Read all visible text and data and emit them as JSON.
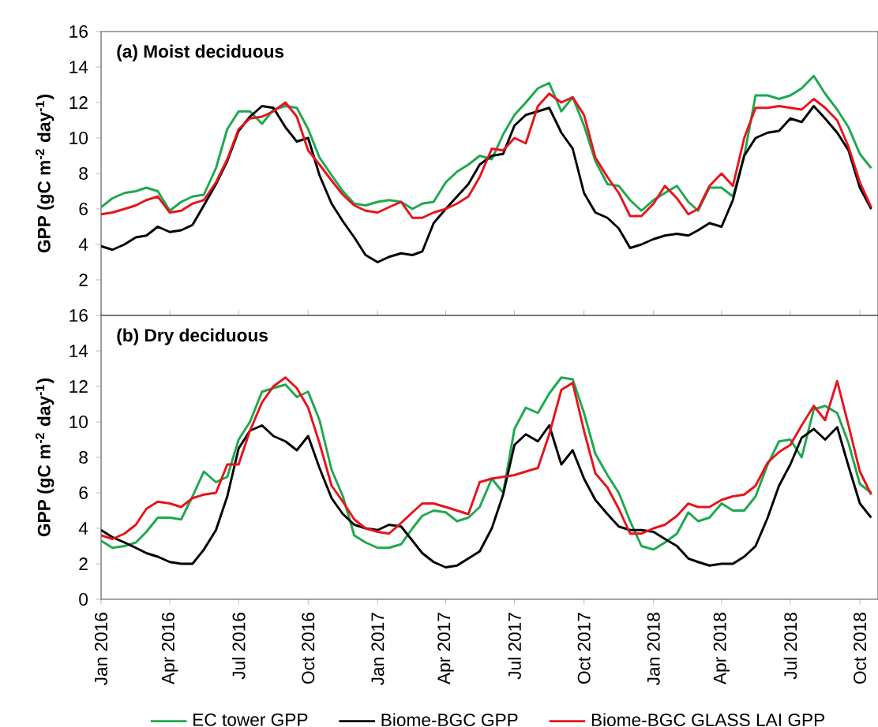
{
  "chart_data": [
    {
      "type": "line",
      "title": "(a) Moist deciduous",
      "ylabel": "GPP (gC m$^{-2}$ day$^{-1}$)",
      "tick_labels": "y",
      "x": [
        "2016-01-01",
        "2016-01-16",
        "2016-02-01",
        "2016-02-16",
        "2016-03-01",
        "2016-03-16",
        "2016-04-01",
        "2016-04-16",
        "2016-05-01",
        "2016-05-16",
        "2016-06-01",
        "2016-06-16",
        "2016-07-01",
        "2016-07-16",
        "2016-08-01",
        "2016-08-16",
        "2016-09-01",
        "2016-09-16",
        "2016-10-01",
        "2016-10-16",
        "2016-11-01",
        "2016-11-16",
        "2016-12-01",
        "2016-12-16",
        "2017-01-01",
        "2017-01-16",
        "2017-02-01",
        "2017-02-16",
        "2017-03-01",
        "2017-03-16",
        "2017-04-01",
        "2017-04-16",
        "2017-05-01",
        "2017-05-16",
        "2017-06-01",
        "2017-06-16",
        "2017-07-01",
        "2017-07-16",
        "2017-08-01",
        "2017-08-16",
        "2017-09-01",
        "2017-09-16",
        "2017-10-01",
        "2017-10-16",
        "2017-11-01",
        "2017-11-16",
        "2017-12-01",
        "2017-12-16",
        "2018-01-01",
        "2018-01-16",
        "2018-02-01",
        "2018-02-16",
        "2018-03-01",
        "2018-03-16",
        "2018-04-01",
        "2018-04-16",
        "2018-05-01",
        "2018-05-16",
        "2018-06-01",
        "2018-06-16",
        "2018-07-01",
        "2018-07-16",
        "2018-08-01",
        "2018-08-16",
        "2018-09-01",
        "2018-09-16",
        "2018-10-01",
        "2018-10-16"
      ],
      "xlim": [
        "2016-01-01",
        "2018-10-25"
      ],
      "ylim": [
        0,
        16
      ],
      "yticks": [
        2,
        4,
        6,
        8,
        10,
        12,
        14,
        16
      ],
      "series": [
        {
          "color": "#1fa84f",
          "values": [
            6.1,
            6.6,
            6.9,
            7.0,
            7.2,
            7.0,
            5.9,
            6.4,
            6.7,
            6.8,
            8.3,
            10.5,
            11.5,
            11.5,
            10.8,
            11.6,
            11.8,
            11.7,
            10.5,
            8.9,
            7.9,
            7.0,
            6.3,
            6.2,
            6.4,
            6.5,
            6.4,
            6.0,
            6.3,
            6.4,
            7.5,
            8.1,
            8.5,
            9.0,
            8.8,
            10.2,
            11.3,
            12.0,
            12.8,
            13.1,
            11.5,
            12.3,
            10.7,
            8.7,
            7.4,
            7.3,
            6.5,
            5.9,
            6.5,
            6.9,
            7.3,
            6.4,
            5.9,
            7.2,
            7.2,
            6.7,
            9.0,
            12.4,
            12.4,
            12.2,
            12.4,
            12.8,
            13.5,
            12.5,
            11.6,
            10.6,
            9.1,
            8.3
          ]
        },
        {
          "color": "#000000",
          "values": [
            3.9,
            3.7,
            4.0,
            4.4,
            4.5,
            5.0,
            4.7,
            4.8,
            5.1,
            6.2,
            7.4,
            8.7,
            10.4,
            11.2,
            11.8,
            11.7,
            10.6,
            9.8,
            10.0,
            7.9,
            6.3,
            5.3,
            4.4,
            3.4,
            3.0,
            3.3,
            3.5,
            3.4,
            3.6,
            5.2,
            6.0,
            6.7,
            7.4,
            8.5,
            9.0,
            9.1,
            10.7,
            11.3,
            11.5,
            11.7,
            10.3,
            9.4,
            6.9,
            5.8,
            5.5,
            4.9,
            3.8,
            4.0,
            4.3,
            4.5,
            4.6,
            4.5,
            4.8,
            5.2,
            5.0,
            6.5,
            9.0,
            10.0,
            10.3,
            10.4,
            11.1,
            10.9,
            11.8,
            11.1,
            10.3,
            9.3,
            7.2,
            6.0
          ]
        },
        {
          "color": "#e8141b",
          "values": [
            5.7,
            5.8,
            6.0,
            6.2,
            6.5,
            6.7,
            5.8,
            5.9,
            6.3,
            6.5,
            7.5,
            8.8,
            10.5,
            11.1,
            11.2,
            11.5,
            12.0,
            11.2,
            9.3,
            8.5,
            7.6,
            6.8,
            6.2,
            5.9,
            5.8,
            6.1,
            6.4,
            5.5,
            5.5,
            5.8,
            6.0,
            6.3,
            6.7,
            7.8,
            9.4,
            9.3,
            10.0,
            9.7,
            11.8,
            12.5,
            12.0,
            12.3,
            11.3,
            8.9,
            7.8,
            6.9,
            5.6,
            5.6,
            6.3,
            7.3,
            6.6,
            5.7,
            6.0,
            7.3,
            8.0,
            7.3,
            10.0,
            11.7,
            11.7,
            11.8,
            11.7,
            11.6,
            12.2,
            11.7,
            11.0,
            9.5,
            7.5,
            6.1
          ]
        }
      ]
    },
    {
      "type": "line",
      "title": "(b) Dry deciduous",
      "ylabel": "GPP (gC m$^{-2}$ day$^{-1}$)",
      "legend": "bottom",
      "x": [
        "2016-01-01",
        "2016-01-16",
        "2016-02-01",
        "2016-02-16",
        "2016-03-01",
        "2016-03-16",
        "2016-04-01",
        "2016-04-16",
        "2016-05-01",
        "2016-05-16",
        "2016-06-01",
        "2016-06-16",
        "2016-07-01",
        "2016-07-16",
        "2016-08-01",
        "2016-08-16",
        "2016-09-01",
        "2016-09-16",
        "2016-10-01",
        "2016-10-16",
        "2016-11-01",
        "2016-11-16",
        "2016-12-01",
        "2016-12-16",
        "2017-01-01",
        "2017-01-16",
        "2017-02-01",
        "2017-02-16",
        "2017-03-01",
        "2017-03-16",
        "2017-04-01",
        "2017-04-16",
        "2017-05-01",
        "2017-05-16",
        "2017-06-01",
        "2017-06-16",
        "2017-07-01",
        "2017-07-16",
        "2017-08-01",
        "2017-08-16",
        "2017-09-01",
        "2017-09-16",
        "2017-10-01",
        "2017-10-16",
        "2017-11-01",
        "2017-11-16",
        "2017-12-01",
        "2017-12-16",
        "2018-01-01",
        "2018-01-16",
        "2018-02-01",
        "2018-02-16",
        "2018-03-01",
        "2018-03-16",
        "2018-04-01",
        "2018-04-16",
        "2018-05-01",
        "2018-05-16",
        "2018-06-01",
        "2018-06-16",
        "2018-07-01",
        "2018-07-16",
        "2018-08-01",
        "2018-08-16",
        "2018-09-01",
        "2018-09-16",
        "2018-10-01",
        "2018-10-16"
      ],
      "xlim": [
        "2016-01-01",
        "2018-10-25"
      ],
      "xticks": [
        {
          "value": "2016-01-01",
          "label": "Jan 2016"
        },
        {
          "value": "2016-04-01",
          "label": "Apr 2016"
        },
        {
          "value": "2016-07-01",
          "label": "Jul 2016"
        },
        {
          "value": "2016-10-01",
          "label": "Oct 2016"
        },
        {
          "value": "2017-01-01",
          "label": "Jan 2017"
        },
        {
          "value": "2017-04-01",
          "label": "Apr 2017"
        },
        {
          "value": "2017-07-01",
          "label": "Jul 2017"
        },
        {
          "value": "2017-10-01",
          "label": "Oct 2017"
        },
        {
          "value": "2018-01-01",
          "label": "Jan 2018"
        },
        {
          "value": "2018-04-01",
          "label": "Apr 2018"
        },
        {
          "value": "2018-07-01",
          "label": "Jul 2018"
        },
        {
          "value": "2018-10-01",
          "label": "Oct 2018"
        }
      ],
      "ylim": [
        0,
        16
      ],
      "yticks": [
        0,
        2,
        4,
        6,
        8,
        10,
        12,
        14,
        16
      ],
      "series": [
        {
          "name": "EC tower GPP",
          "color": "#1fa84f",
          "values": [
            3.3,
            2.9,
            3.0,
            3.2,
            3.8,
            4.6,
            4.6,
            4.5,
            5.8,
            7.2,
            6.6,
            6.9,
            9.0,
            10.0,
            11.7,
            11.9,
            12.1,
            11.4,
            11.7,
            10.1,
            7.3,
            5.8,
            3.6,
            3.2,
            2.9,
            2.9,
            3.1,
            4.0,
            4.7,
            5.0,
            4.9,
            4.4,
            4.6,
            5.2,
            6.8,
            6.0,
            9.6,
            10.8,
            10.5,
            11.6,
            12.5,
            12.4,
            10.5,
            8.2,
            7.0,
            6.0,
            4.4,
            3.0,
            2.8,
            3.2,
            3.7,
            4.9,
            4.4,
            4.6,
            5.4,
            5.0,
            5.0,
            5.8,
            7.6,
            8.9,
            9.0,
            8.0,
            10.7,
            10.9,
            10.5,
            8.8,
            6.5,
            6.0
          ]
        },
        {
          "name": "Biome-BGC GPP",
          "color": "#000000",
          "values": [
            3.9,
            3.5,
            3.2,
            2.9,
            2.6,
            2.4,
            2.1,
            2.0,
            2.0,
            2.8,
            3.9,
            5.8,
            8.5,
            9.5,
            9.8,
            9.2,
            8.9,
            8.4,
            9.2,
            7.4,
            5.7,
            4.8,
            4.2,
            4.0,
            3.9,
            4.2,
            4.1,
            3.3,
            2.6,
            2.1,
            1.8,
            1.9,
            2.3,
            2.7,
            4.0,
            5.9,
            8.7,
            9.3,
            8.9,
            9.8,
            7.6,
            8.4,
            6.8,
            5.6,
            4.8,
            4.1,
            3.9,
            3.9,
            3.8,
            3.4,
            3.0,
            2.3,
            2.1,
            1.9,
            2.0,
            2.0,
            2.4,
            3.0,
            4.6,
            6.4,
            7.6,
            9.1,
            9.6,
            9.0,
            9.7,
            7.5,
            5.4,
            4.6
          ]
        },
        {
          "name": "Biome-BGC GLASS LAI GPP",
          "color": "#e8141b",
          "values": [
            3.6,
            3.4,
            3.7,
            4.2,
            5.1,
            5.5,
            5.4,
            5.2,
            5.7,
            5.9,
            6.0,
            7.6,
            7.6,
            9.5,
            11.1,
            12.0,
            12.5,
            11.9,
            10.8,
            8.8,
            6.4,
            5.5,
            4.5,
            4.0,
            3.8,
            3.7,
            4.3,
            4.9,
            5.4,
            5.4,
            5.2,
            5.0,
            4.8,
            6.6,
            6.8,
            6.9,
            7.0,
            7.2,
            7.4,
            9.3,
            11.8,
            12.2,
            9.5,
            7.1,
            6.3,
            5.1,
            3.7,
            3.7,
            4.0,
            4.2,
            4.7,
            5.4,
            5.2,
            5.2,
            5.6,
            5.8,
            5.9,
            6.4,
            7.7,
            8.3,
            8.7,
            9.8,
            10.9,
            10.1,
            12.3,
            9.8,
            7.2,
            5.9
          ]
        }
      ]
    }
  ]
}
